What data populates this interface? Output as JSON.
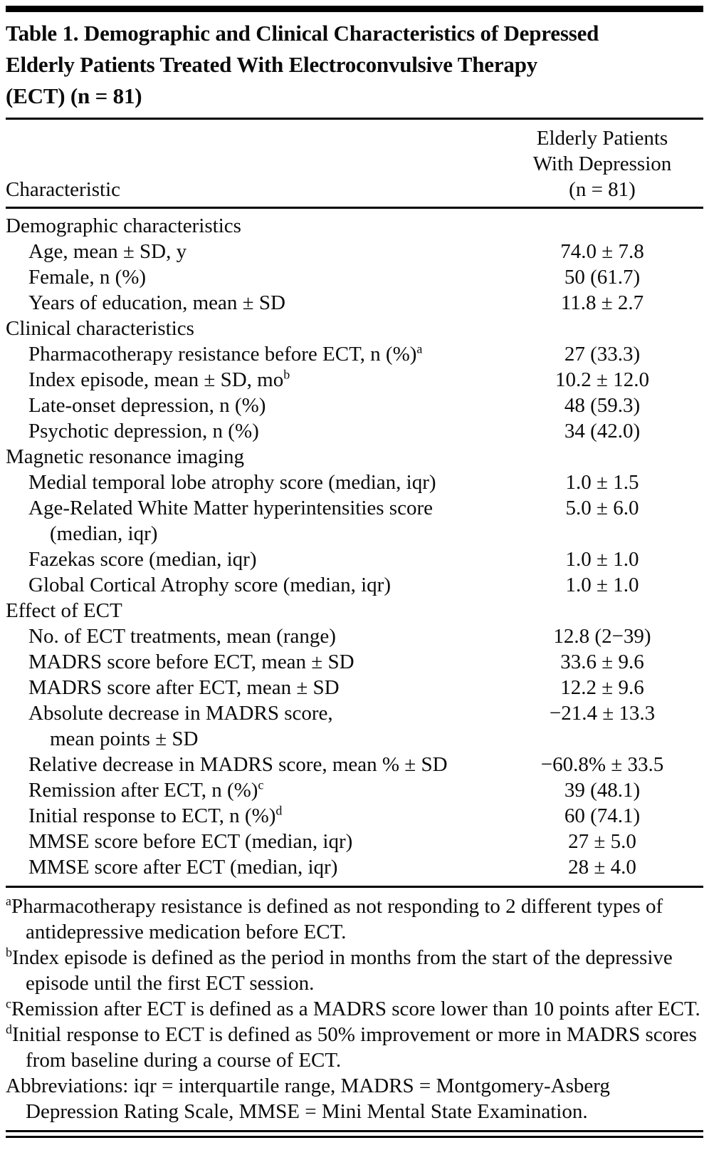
{
  "table": {
    "title_lines": [
      "Table 1. Demographic and Clinical Characteristics of Depressed",
      "Elderly Patients Treated With Electroconvulsive Therapy",
      "(ECT) (n = 81)"
    ],
    "header": {
      "left": "Characteristic",
      "right_lines": [
        "Elderly Patients",
        "With Depression",
        "(n = 81)"
      ]
    },
    "rows": [
      {
        "label": "Demographic characteristics",
        "sup": "",
        "label2": "",
        "value": "",
        "section": true
      },
      {
        "label": "Age, mean ± SD, y",
        "sup": "",
        "label2": "",
        "value": "74.0 ± 7.8",
        "section": false
      },
      {
        "label": "Female, n (%)",
        "sup": "",
        "label2": "",
        "value": "50 (61.7)",
        "section": false
      },
      {
        "label": "Years of education, mean ± SD",
        "sup": "",
        "label2": "",
        "value": "11.8 ± 2.7",
        "section": false
      },
      {
        "label": "Clinical characteristics",
        "sup": "",
        "label2": "",
        "value": "",
        "section": true
      },
      {
        "label": "Pharmacotherapy resistance before ECT, n (%)",
        "sup": "a",
        "label2": "",
        "value": "27 (33.3)",
        "section": false
      },
      {
        "label": "Index episode, mean ± SD, mo",
        "sup": "b",
        "label2": "",
        "value": "10.2 ± 12.0",
        "section": false
      },
      {
        "label": "Late-onset depression, n (%)",
        "sup": "",
        "label2": "",
        "value": "48 (59.3)",
        "section": false
      },
      {
        "label": "Psychotic depression, n (%)",
        "sup": "",
        "label2": "",
        "value": "34 (42.0)",
        "section": false
      },
      {
        "label": "Magnetic resonance imaging",
        "sup": "",
        "label2": "",
        "value": "",
        "section": true
      },
      {
        "label": "Medial temporal lobe atrophy score (median, iqr)",
        "sup": "",
        "label2": "",
        "value": "1.0 ± 1.5",
        "section": false
      },
      {
        "label": "Age-Related White Matter hyperintensities score",
        "sup": "",
        "label2": "(median, iqr)",
        "value": "5.0 ± 6.0",
        "section": false
      },
      {
        "label": "Fazekas score (median, iqr)",
        "sup": "",
        "label2": "",
        "value": "1.0 ± 1.0",
        "section": false
      },
      {
        "label": "Global Cortical Atrophy score (median, iqr)",
        "sup": "",
        "label2": "",
        "value": "1.0 ± 1.0",
        "section": false
      },
      {
        "label": "Effect of ECT",
        "sup": "",
        "label2": "",
        "value": "",
        "section": true
      },
      {
        "label": "No. of ECT treatments, mean (range)",
        "sup": "",
        "label2": "",
        "value": "12.8 (2−39)",
        "section": false
      },
      {
        "label": "MADRS score before ECT, mean ± SD",
        "sup": "",
        "label2": "",
        "value": "33.6 ± 9.6",
        "section": false
      },
      {
        "label": "MADRS score after ECT, mean ± SD",
        "sup": "",
        "label2": "",
        "value": "12.2 ± 9.6",
        "section": false
      },
      {
        "label": "Absolute decrease in MADRS score,",
        "sup": "",
        "label2": "mean points ± SD",
        "value": "−21.4 ± 13.3",
        "section": false
      },
      {
        "label": "Relative decrease in MADRS score, mean % ± SD",
        "sup": "",
        "label2": "",
        "value": "−60.8% ± 33.5",
        "section": false
      },
      {
        "label": "Remission after ECT, n (%)",
        "sup": "c",
        "label2": "",
        "value": "39 (48.1)",
        "section": false
      },
      {
        "label": "Initial response to ECT, n (%)",
        "sup": "d",
        "label2": "",
        "value": "60 (74.1)",
        "section": false
      },
      {
        "label": "MMSE score before ECT (median, iqr)",
        "sup": "",
        "label2": "",
        "value": "27 ± 5.0",
        "section": false
      },
      {
        "label": "MMSE score after ECT (median, iqr)",
        "sup": "",
        "label2": "",
        "value": "28 ± 4.0",
        "section": false
      }
    ],
    "footnotes": [
      {
        "sup": "a",
        "text": "Pharmacotherapy resistance is defined as not responding to 2 different types of antidepressive medication before ECT."
      },
      {
        "sup": "b",
        "text": "Index episode is defined as the period in months from the start of the depressive episode until the first ECT session."
      },
      {
        "sup": "c",
        "text": "Remission after ECT is defined as a MADRS score lower than 10 points after ECT."
      },
      {
        "sup": "d",
        "text": "Initial response to ECT is defined as 50% improvement or more in MADRS scores from baseline during a course of ECT."
      },
      {
        "sup": "",
        "text": "Abbreviations: iqr = interquartile range, MADRS = Montgomery-Asberg Depression Rating Scale, MMSE = Mini Mental State Examination."
      }
    ]
  }
}
